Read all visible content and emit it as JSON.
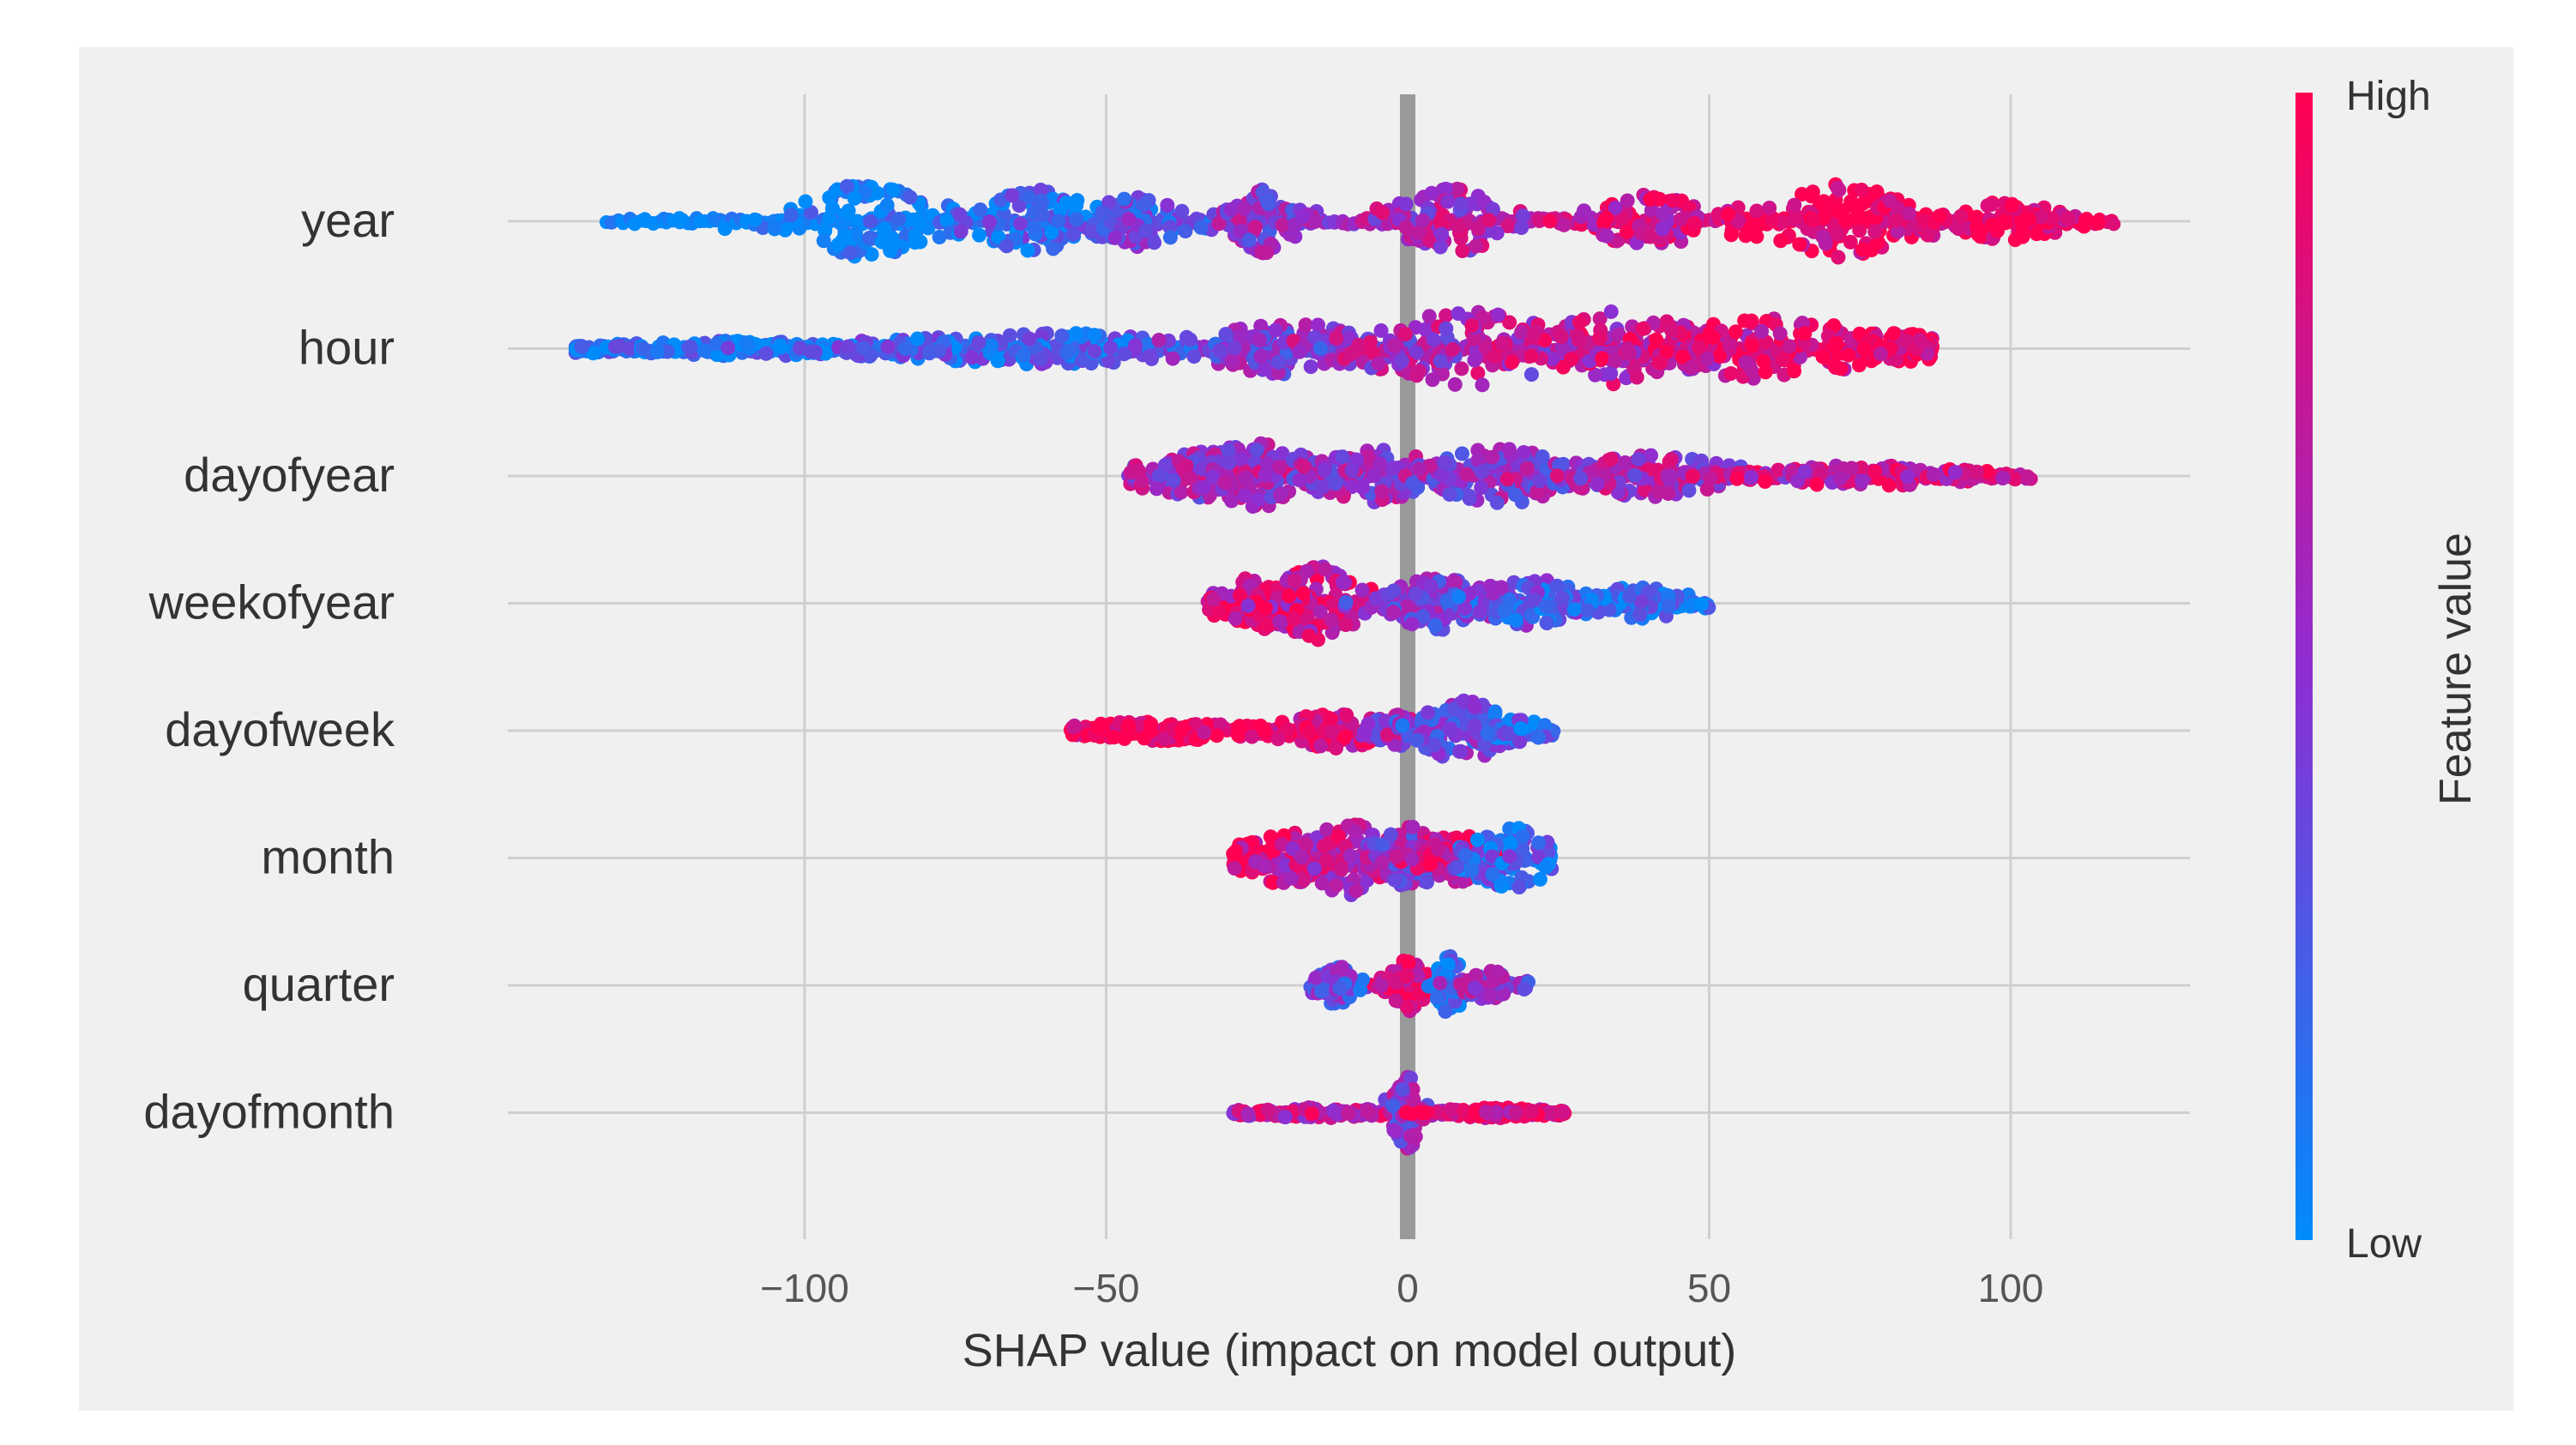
{
  "chart_data": {
    "type": "scatter",
    "subtype": "shap-beeswarm-summary",
    "title": "",
    "xlabel": "SHAP value (impact on model output)",
    "ylabel": "",
    "xlim": [
      -150,
      130
    ],
    "xticks": [
      -100,
      -50,
      0,
      50,
      100
    ],
    "xtick_labels": [
      "−100",
      "−50",
      "0",
      "50",
      "100"
    ],
    "grid": true,
    "colorbar": {
      "label": "Feature value",
      "high_label": "High",
      "low_label": "Low",
      "low_color": "#008bfb",
      "mid_color": "#8f2dd2",
      "high_color": "#ff0052"
    },
    "features": [
      {
        "name": "year",
        "min": -133,
        "max": 117,
        "clusters": [
          [
            -90,
            8,
            0.02,
            14,
            0.9
          ],
          [
            -62,
            7,
            0.18,
            12,
            0.85
          ],
          [
            -45,
            5,
            0.32,
            10,
            0.7
          ],
          [
            -24,
            4,
            0.5,
            12,
            1.0
          ],
          [
            7,
            6,
            0.62,
            13,
            1.0
          ],
          [
            40,
            7,
            0.78,
            10,
            0.8
          ],
          [
            72,
            9,
            0.95,
            14,
            0.95
          ],
          [
            100,
            6,
            0.98,
            8,
            0.6
          ]
        ]
      },
      {
        "name": "hour",
        "min": -138,
        "max": 87,
        "clusters": [
          [
            -110,
            20,
            0.1,
            3,
            0.8
          ],
          [
            -60,
            20,
            0.2,
            6,
            0.9
          ],
          [
            -20,
            10,
            0.45,
            10,
            1.0
          ],
          [
            10,
            12,
            0.62,
            14,
            1.0
          ],
          [
            35,
            10,
            0.72,
            14,
            1.0
          ],
          [
            60,
            12,
            0.9,
            12,
            0.95
          ],
          [
            82,
            5,
            0.95,
            6,
            0.5
          ]
        ]
      },
      {
        "name": "dayofyear",
        "min": -46,
        "max": 103,
        "clusters": [
          [
            -35,
            6,
            0.55,
            10,
            0.7
          ],
          [
            -25,
            6,
            0.6,
            14,
            1.0
          ],
          [
            -5,
            8,
            0.55,
            10,
            0.9
          ],
          [
            15,
            8,
            0.5,
            11,
            0.9
          ],
          [
            40,
            10,
            0.6,
            8,
            0.8
          ],
          [
            75,
            14,
            0.75,
            4,
            0.8
          ]
        ]
      },
      {
        "name": "weekofyear",
        "min": -33,
        "max": 50,
        "clusters": [
          [
            -25,
            5,
            0.8,
            10,
            0.8
          ],
          [
            -15,
            5,
            0.75,
            14,
            1.0
          ],
          [
            5,
            6,
            0.45,
            10,
            0.9
          ],
          [
            20,
            6,
            0.3,
            10,
            0.9
          ],
          [
            38,
            7,
            0.15,
            6,
            0.6
          ]
        ]
      },
      {
        "name": "dayofweek",
        "min": -56,
        "max": 24,
        "clusters": [
          [
            -40,
            10,
            0.95,
            4,
            0.7
          ],
          [
            -12,
            6,
            0.85,
            7,
            0.8
          ],
          [
            -2,
            3,
            0.55,
            6,
            0.6
          ],
          [
            9,
            5,
            0.35,
            12,
            1.0
          ],
          [
            18,
            3,
            0.2,
            5,
            0.4
          ]
        ]
      },
      {
        "name": "month",
        "min": -29,
        "max": 24,
        "clusters": [
          [
            -20,
            6,
            0.85,
            10,
            0.8
          ],
          [
            -10,
            5,
            0.7,
            14,
            0.9
          ],
          [
            0,
            4,
            0.5,
            12,
            1.0
          ],
          [
            8,
            4,
            0.8,
            10,
            0.8
          ],
          [
            17,
            5,
            0.2,
            12,
            0.8
          ]
        ]
      },
      {
        "name": "quarter",
        "min": -16,
        "max": 20,
        "clusters": [
          [
            -12,
            2,
            0.35,
            8,
            0.7
          ],
          [
            0,
            2,
            0.9,
            10,
            0.9
          ],
          [
            7,
            1.5,
            0.15,
            12,
            0.8
          ],
          [
            14,
            3,
            0.5,
            6,
            0.5
          ]
        ]
      },
      {
        "name": "dayofmonth",
        "min": -29,
        "max": 26,
        "clusters": [
          [
            -15,
            9,
            0.7,
            2,
            0.5
          ],
          [
            0,
            1.5,
            0.5,
            14,
            1.0
          ],
          [
            14,
            7,
            0.85,
            2,
            0.5
          ],
          [
            23,
            2,
            0.95,
            1,
            0.2
          ]
        ]
      }
    ]
  }
}
